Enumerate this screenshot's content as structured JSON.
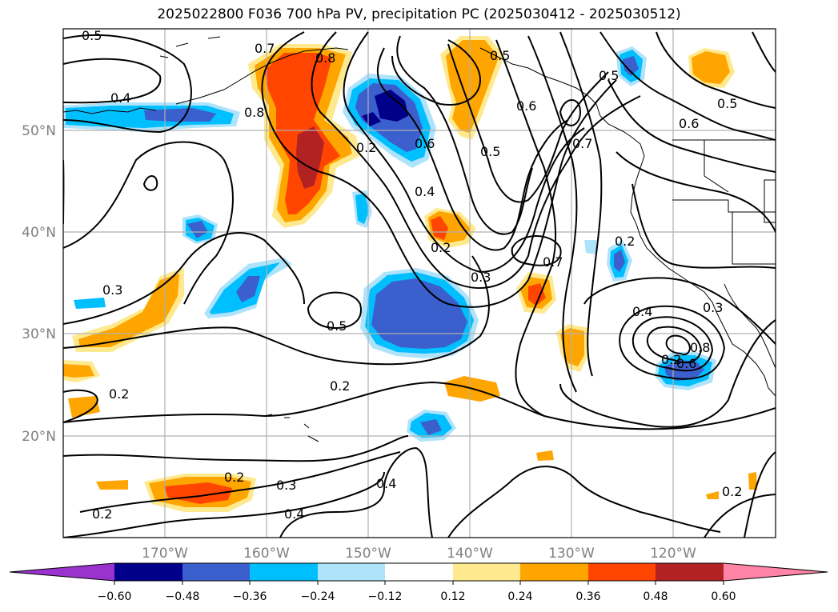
{
  "title": "2025022800 F036 700 hPa PV, precipitation PC (2025030412 - 2025030512)",
  "lat_labels": [
    "50°N",
    "40°N",
    "30°N",
    "20°N"
  ],
  "lon_labels": [
    "170°W",
    "160°W",
    "150°W",
    "140°W",
    "130°W",
    "120°W"
  ],
  "colorbar": {
    "colors": [
      "#9a32cd",
      "#00008b",
      "#3b5fcd",
      "#00bfff",
      "#aee3fb",
      "#ffffff",
      "#ffe98f",
      "#ffa500",
      "#ff4500",
      "#b22222",
      "#ff85a8"
    ],
    "tick_labels": [
      "−0.60",
      "−0.48",
      "−0.36",
      "−0.24",
      "−0.12",
      "0.12",
      "0.24",
      "0.36",
      "0.48",
      "0.60"
    ]
  },
  "contour_labels": [
    "0.5",
    "0.4",
    "0.7",
    "0.8",
    "0.8",
    "0.2",
    "0.6",
    "0.5",
    "0.6",
    "0.7",
    "0.5",
    "0.6",
    "0.3",
    "0.5",
    "0.4",
    "0.2",
    "0.2",
    "0.3",
    "0.7",
    "0.2",
    "0.4",
    "0.3",
    "0.2",
    "0.2",
    "0.3",
    "0.4",
    "0.4",
    "0.2",
    "0.2",
    "0.5",
    "0.2",
    "0.8",
    "0.6",
    "0.5"
  ],
  "map_extent": {
    "lon": [
      -180,
      -110
    ],
    "lat": [
      10,
      60
    ]
  }
}
